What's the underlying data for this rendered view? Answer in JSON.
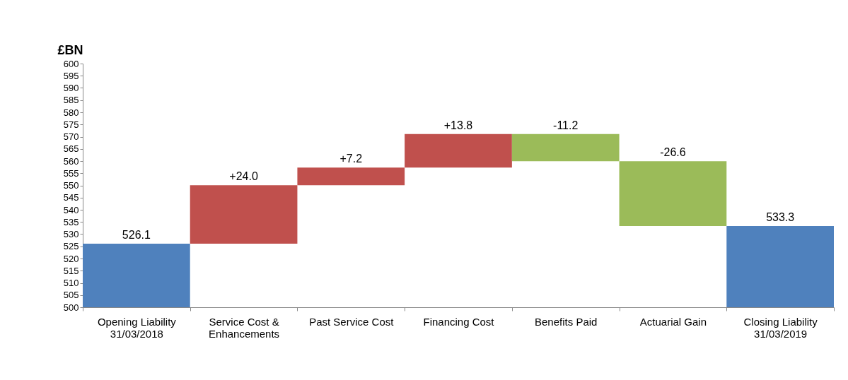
{
  "chart_data": {
    "type": "bar",
    "ylabel": "£BN",
    "categories": [
      "Opening Liability\n31/03/2018",
      "Service Cost &\nEnhancements",
      "Past Service Cost",
      "Financing Cost",
      "Benefits Paid",
      "Actuarial Gain",
      "Closing Liability\n31/03/2019"
    ],
    "values": [
      526.1,
      24.0,
      7.2,
      13.8,
      -11.2,
      -26.6,
      533.3
    ],
    "base": [
      null,
      526.1,
      550.1,
      557.3,
      571.1,
      559.9,
      null
    ],
    "colors": [
      "#4f81bd",
      "#c0504d",
      "#c0504d",
      "#c0504d",
      "#9bbb59",
      "#9bbb59",
      "#4f81bd"
    ],
    "value_labels": [
      "526.1",
      "+24.0",
      "+7.2",
      "+13.8",
      "-11.2",
      "-26.6",
      "533.3"
    ],
    "ylim": [
      500,
      600
    ],
    "yticks": [
      500,
      505,
      510,
      515,
      520,
      525,
      530,
      535,
      540,
      545,
      550,
      555,
      560,
      565,
      570,
      575,
      580,
      585,
      590,
      595,
      600
    ],
    "grid": false
  }
}
